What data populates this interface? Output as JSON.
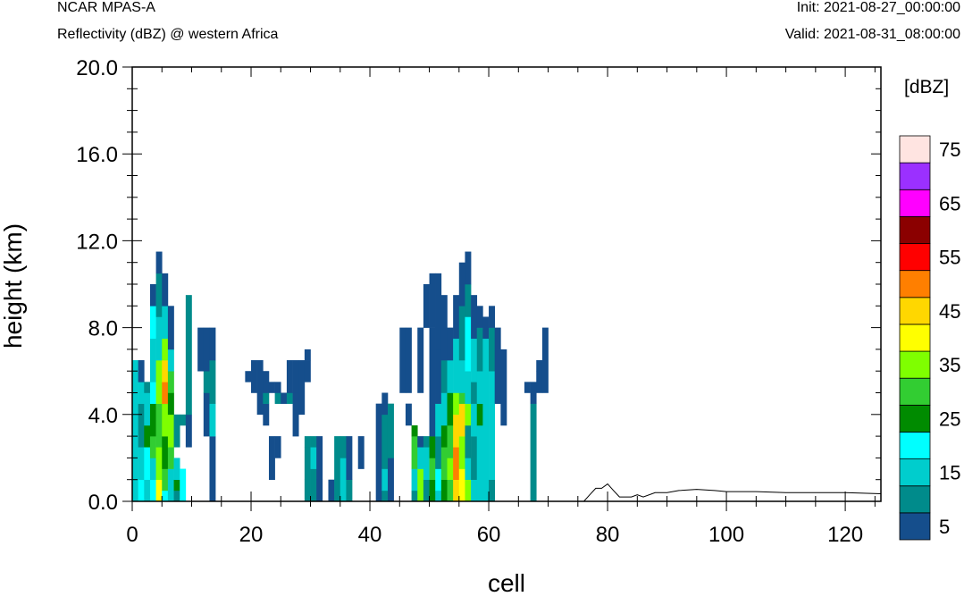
{
  "header": {
    "model": "NCAR MPAS-A",
    "subtitle": "Reflectivity (dBZ) @ western Africa",
    "init": "Init: 2021-08-27_00:00:00",
    "valid": "Valid: 2021-08-31_08:00:00"
  },
  "chart_data": {
    "type": "heatmap",
    "title": "Reflectivity (dBZ) @ western Africa",
    "xlabel": "cell",
    "ylabel": "height (km)",
    "xlim": [
      0,
      126
    ],
    "ylim": [
      0,
      20
    ],
    "x_ticks": [
      "0",
      "20",
      "40",
      "60",
      "80",
      "100",
      "120"
    ],
    "y_ticks": [
      "0.0",
      "4.0",
      "8.0",
      "12.0",
      "16.0",
      "20.0"
    ],
    "colorbar": {
      "unit": "[dBZ]",
      "levels": [
        5,
        10,
        15,
        20,
        25,
        30,
        35,
        40,
        45,
        50,
        55,
        60,
        65,
        70,
        75
      ],
      "labels": [
        "5",
        "15",
        "25",
        "35",
        "45",
        "55",
        "65",
        "75"
      ],
      "colors": [
        "#154e8c",
        "#008b8b",
        "#00cdcd",
        "#00ffff",
        "#008b00",
        "#32cd32",
        "#7fff00",
        "#ffff00",
        "#ffd700",
        "#ff7f00",
        "#ff0000",
        "#8b0000",
        "#ff00ff",
        "#9b30ff",
        "#ffe4e1"
      ]
    },
    "columns": [
      [
        0,
        [
          [
            0,
            6.5,
            "#00cdcd"
          ]
        ]
      ],
      [
        1,
        [
          [
            0,
            1,
            "#00ffff"
          ],
          [
            1,
            2.5,
            "#00cdcd"
          ],
          [
            2.5,
            4.5,
            "#008b8b"
          ],
          [
            4.5,
            5.5,
            "#00cdcd"
          ],
          [
            5.5,
            6.5,
            "#154e8c"
          ]
        ]
      ],
      [
        2,
        [
          [
            0,
            1,
            "#00cdcd"
          ],
          [
            1,
            2.5,
            "#00ffff"
          ],
          [
            2.5,
            3.5,
            "#008b00"
          ],
          [
            3.5,
            5,
            "#00cdcd"
          ],
          [
            5,
            5.5,
            "#008b8b"
          ]
        ]
      ],
      [
        3,
        [
          [
            0,
            1,
            "#00ffff"
          ],
          [
            1,
            2,
            "#00cdcd"
          ],
          [
            2,
            3,
            "#32cd32"
          ],
          [
            3,
            4.5,
            "#008b00"
          ],
          [
            4.5,
            5.5,
            "#00ffff"
          ],
          [
            5.5,
            7.5,
            "#00cdcd"
          ],
          [
            7.5,
            9,
            "#00ffff"
          ],
          [
            9,
            10,
            "#154e8c"
          ]
        ]
      ],
      [
        4,
        [
          [
            0,
            1,
            "#ffff00"
          ],
          [
            1,
            2.5,
            "#7fff00"
          ],
          [
            2.5,
            4.5,
            "#32cd32"
          ],
          [
            4.5,
            6.5,
            "#7fff00"
          ],
          [
            6.5,
            8.5,
            "#00cdcd"
          ],
          [
            8.5,
            10.5,
            "#008b8b"
          ],
          [
            10.5,
            11.5,
            "#154e8c"
          ]
        ]
      ],
      [
        5,
        [
          [
            0,
            0.5,
            "#00ffff"
          ],
          [
            0.5,
            1.5,
            "#32cd32"
          ],
          [
            1.5,
            3,
            "#008b00"
          ],
          [
            3,
            4.5,
            "#7fff00"
          ],
          [
            4.5,
            5.5,
            "#ff7f00"
          ],
          [
            5.5,
            6.5,
            "#ffd700"
          ],
          [
            6.5,
            7.5,
            "#7fff00"
          ],
          [
            7.5,
            9,
            "#00cdcd"
          ],
          [
            9,
            10.5,
            "#154e8c"
          ]
        ]
      ],
      [
        6,
        [
          [
            0,
            1.5,
            "#00cdcd"
          ],
          [
            1.5,
            2.5,
            "#32cd32"
          ],
          [
            2.5,
            4,
            "#7fff00"
          ],
          [
            4,
            5,
            "#008b00"
          ],
          [
            5,
            6,
            "#32cd32"
          ],
          [
            6,
            7,
            "#00cdcd"
          ],
          [
            7,
            9,
            "#154e8c"
          ]
        ]
      ],
      [
        7,
        [
          [
            0,
            0.5,
            "#008b8b"
          ],
          [
            0.5,
            1,
            "#008b00"
          ],
          [
            1,
            2,
            "#00cdcd"
          ],
          [
            2.5,
            4,
            "#008b8b"
          ]
        ]
      ],
      [
        8,
        [
          [
            0,
            1.5,
            "#00ffff"
          ],
          [
            3.5,
            4,
            "#008b8b"
          ]
        ]
      ],
      [
        9,
        [
          [
            2.5,
            4,
            "#154e8c"
          ],
          [
            4,
            9.5,
            "#008b8b"
          ]
        ]
      ],
      [
        11,
        [
          [
            6,
            8,
            "#154e8c"
          ]
        ]
      ],
      [
        12,
        [
          [
            3,
            5,
            "#154e8c"
          ],
          [
            5,
            6,
            "#008b8b"
          ],
          [
            6,
            8,
            "#154e8c"
          ]
        ]
      ],
      [
        13,
        [
          [
            0,
            3,
            "#154e8c"
          ],
          [
            3,
            4.5,
            "#00cdcd"
          ],
          [
            4.5,
            6.5,
            "#008b8b"
          ],
          [
            6.5,
            8,
            "#154e8c"
          ]
        ]
      ],
      [
        19,
        [
          [
            5.5,
            6,
            "#154e8c"
          ]
        ]
      ],
      [
        20,
        [
          [
            5,
            6.5,
            "#154e8c"
          ]
        ]
      ],
      [
        21,
        [
          [
            4,
            6.5,
            "#154e8c"
          ]
        ]
      ],
      [
        22,
        [
          [
            3.5,
            4.5,
            "#154e8c"
          ],
          [
            4.5,
            5,
            "#008b8b"
          ],
          [
            5,
            6,
            "#154e8c"
          ]
        ]
      ],
      [
        23,
        [
          [
            1,
            3,
            "#154e8c"
          ],
          [
            5,
            5.5,
            "#154e8c"
          ]
        ]
      ],
      [
        24,
        [
          [
            2,
            3,
            "#154e8c"
          ],
          [
            4.5,
            5,
            "#008b8b"
          ],
          [
            5,
            5.5,
            "#154e8c"
          ]
        ]
      ],
      [
        25,
        [
          [
            4.5,
            5,
            "#154e8c"
          ]
        ]
      ],
      [
        26,
        [
          [
            4.5,
            5,
            "#008b8b"
          ],
          [
            5,
            6.5,
            "#154e8c"
          ]
        ]
      ],
      [
        27,
        [
          [
            3,
            5,
            "#154e8c"
          ],
          [
            5,
            6.5,
            "#154e8c"
          ]
        ]
      ],
      [
        28,
        [
          [
            4,
            6.5,
            "#154e8c"
          ]
        ]
      ],
      [
        29,
        [
          [
            0,
            1,
            "#008b8b"
          ],
          [
            1,
            2.5,
            "#008b8b"
          ],
          [
            2.5,
            3,
            "#008b8b"
          ],
          [
            5.5,
            6.5,
            "#154e8c"
          ],
          [
            6.5,
            7,
            "#154e8c"
          ]
        ]
      ],
      [
        30,
        [
          [
            0,
            1.5,
            "#008b8b"
          ],
          [
            1.5,
            2.5,
            "#00cdcd"
          ],
          [
            2.5,
            3,
            "#008b8b"
          ]
        ]
      ],
      [
        31,
        [
          [
            0,
            1,
            "#154e8c"
          ],
          [
            1,
            3,
            "#154e8c"
          ]
        ]
      ],
      [
        33,
        [
          [
            0,
            1,
            "#154e8c"
          ]
        ]
      ],
      [
        34,
        [
          [
            0,
            1,
            "#008b8b"
          ],
          [
            1,
            3,
            "#008b8b"
          ]
        ]
      ],
      [
        35,
        [
          [
            0,
            2,
            "#00cdcd"
          ],
          [
            2,
            3,
            "#008b8b"
          ]
        ]
      ],
      [
        36,
        [
          [
            0,
            1,
            "#008b8b"
          ],
          [
            1,
            3,
            "#154e8c"
          ]
        ]
      ],
      [
        38,
        [
          [
            1.5,
            3,
            "#154e8c"
          ]
        ]
      ],
      [
        41,
        [
          [
            0,
            4.5,
            "#154e8c"
          ]
        ]
      ],
      [
        42,
        [
          [
            0,
            0.5,
            "#008b8b"
          ],
          [
            0.5,
            1.5,
            "#00cdcd"
          ],
          [
            1.5,
            4,
            "#008b8b"
          ],
          [
            4,
            5,
            "#154e8c"
          ]
        ]
      ],
      [
        43,
        [
          [
            0,
            2,
            "#154e8c"
          ],
          [
            2,
            4.5,
            "#008b8b"
          ]
        ]
      ],
      [
        45,
        [
          [
            5,
            8,
            "#154e8c"
          ]
        ]
      ],
      [
        46,
        [
          [
            3.5,
            4.5,
            "#154e8c"
          ],
          [
            5,
            8,
            "#154e8c"
          ]
        ]
      ],
      [
        47,
        [
          [
            0,
            0.5,
            "#008b8b"
          ],
          [
            0.5,
            1.5,
            "#00cdcd"
          ],
          [
            1.5,
            3,
            "#32cd32"
          ],
          [
            3,
            3.5,
            "#008b00"
          ]
        ]
      ],
      [
        48,
        [
          [
            0,
            1.5,
            "#7fff00"
          ],
          [
            1.5,
            2.5,
            "#00cdcd"
          ],
          [
            2.5,
            3,
            "#154e8c"
          ],
          [
            5,
            8,
            "#154e8c"
          ]
        ]
      ],
      [
        49,
        [
          [
            0,
            1,
            "#008b8b"
          ],
          [
            1,
            2.5,
            "#00cdcd"
          ],
          [
            2.5,
            3,
            "#008b8b"
          ],
          [
            8,
            10,
            "#154e8c"
          ]
        ]
      ],
      [
        50,
        [
          [
            0,
            1,
            "#008b00"
          ],
          [
            1,
            2,
            "#32cd32"
          ],
          [
            2,
            3,
            "#008b00"
          ],
          [
            3,
            8,
            "#154e8c"
          ],
          [
            8,
            10.5,
            "#154e8c"
          ]
        ]
      ],
      [
        51,
        [
          [
            0,
            0.5,
            "#00cdcd"
          ],
          [
            0.5,
            1.5,
            "#00ffff"
          ],
          [
            1.5,
            3,
            "#008b8b"
          ],
          [
            3,
            4.5,
            "#00cdcd"
          ],
          [
            4.5,
            7,
            "#154e8c"
          ],
          [
            7,
            10.5,
            "#154e8c"
          ]
        ]
      ],
      [
        52,
        [
          [
            0,
            1,
            "#008b00"
          ],
          [
            1,
            2.5,
            "#32cd32"
          ],
          [
            2.5,
            3.5,
            "#008b00"
          ],
          [
            3.5,
            5,
            "#00cdcd"
          ],
          [
            5,
            6.5,
            "#008b8b"
          ],
          [
            6.5,
            9.5,
            "#154e8c"
          ]
        ]
      ],
      [
        53,
        [
          [
            0,
            1,
            "#32cd32"
          ],
          [
            1,
            2,
            "#7fff00"
          ],
          [
            2,
            3.5,
            "#32cd32"
          ],
          [
            3.5,
            5,
            "#008b00"
          ],
          [
            5,
            6.5,
            "#00cdcd"
          ],
          [
            6.5,
            8,
            "#154e8c"
          ]
        ]
      ],
      [
        54,
        [
          [
            0,
            1,
            "#ffd700"
          ],
          [
            1,
            2.5,
            "#ff7f00"
          ],
          [
            2.5,
            4,
            "#ffd700"
          ],
          [
            4,
            5,
            "#7fff00"
          ],
          [
            5,
            7.5,
            "#00cdcd"
          ],
          [
            7.5,
            9.5,
            "#154e8c"
          ]
        ]
      ],
      [
        55,
        [
          [
            0,
            1.5,
            "#ffff00"
          ],
          [
            1.5,
            3,
            "#7fff00"
          ],
          [
            3,
            4.5,
            "#ffd700"
          ],
          [
            4.5,
            5,
            "#32cd32"
          ],
          [
            5,
            6.5,
            "#00cdcd"
          ],
          [
            6.5,
            9,
            "#008b8b"
          ],
          [
            9,
            11,
            "#154e8c"
          ]
        ]
      ],
      [
        56,
        [
          [
            0,
            1,
            "#7fff00"
          ],
          [
            1,
            2,
            "#00cdcd"
          ],
          [
            2,
            3.5,
            "#008b8b"
          ],
          [
            3.5,
            4.5,
            "#7fff00"
          ],
          [
            4.5,
            6,
            "#00cdcd"
          ],
          [
            6,
            8.5,
            "#00ffff"
          ],
          [
            8.5,
            10,
            "#008b8b"
          ],
          [
            10,
            11.5,
            "#154e8c"
          ]
        ]
      ],
      [
        57,
        [
          [
            0,
            1,
            "#00cdcd"
          ],
          [
            1,
            3,
            "#008b8b"
          ],
          [
            3,
            4.5,
            "#00cdcd"
          ],
          [
            4.5,
            5.5,
            "#008b8b"
          ],
          [
            5.5,
            7.5,
            "#00cdcd"
          ],
          [
            7.5,
            9.5,
            "#154e8c"
          ]
        ]
      ],
      [
        58,
        [
          [
            0,
            3.5,
            "#00cdcd"
          ],
          [
            3.5,
            4.5,
            "#008b00"
          ],
          [
            4.5,
            6,
            "#00cdcd"
          ],
          [
            6,
            8,
            "#008b8b"
          ],
          [
            8,
            9,
            "#154e8c"
          ]
        ]
      ],
      [
        59,
        [
          [
            0,
            1,
            "#00cdcd"
          ],
          [
            1,
            3.5,
            "#00cdcd"
          ],
          [
            3.5,
            5,
            "#00cdcd"
          ],
          [
            5,
            7.5,
            "#00cdcd"
          ],
          [
            7.5,
            8.5,
            "#154e8c"
          ]
        ]
      ],
      [
        60,
        [
          [
            0,
            1,
            "#008b8b"
          ],
          [
            1,
            4.5,
            "#00cdcd"
          ],
          [
            4.5,
            6,
            "#00cdcd"
          ],
          [
            6,
            8,
            "#008b8b"
          ],
          [
            8,
            9,
            "#154e8c"
          ]
        ]
      ],
      [
        61,
        [
          [
            4.5,
            8,
            "#154e8c"
          ]
        ]
      ],
      [
        62,
        [
          [
            3.5,
            7,
            "#154e8c"
          ]
        ]
      ],
      [
        66,
        [
          [
            5,
            5.5,
            "#154e8c"
          ]
        ]
      ],
      [
        67,
        [
          [
            0,
            4.5,
            "#008b8b"
          ],
          [
            4.5,
            5.5,
            "#154e8c"
          ]
        ]
      ],
      [
        68,
        [
          [
            5,
            6,
            "#154e8c"
          ],
          [
            6,
            6.5,
            "#154e8c"
          ]
        ]
      ],
      [
        69,
        [
          [
            5,
            8,
            "#154e8c"
          ]
        ]
      ]
    ],
    "terrain": [
      [
        0,
        0
      ],
      [
        76,
        0
      ],
      [
        77,
        0.3
      ],
      [
        78,
        0.6
      ],
      [
        79,
        0.6
      ],
      [
        80,
        0.8
      ],
      [
        81,
        0.5
      ],
      [
        82,
        0.2
      ],
      [
        84,
        0.2
      ],
      [
        85,
        0.3
      ],
      [
        86,
        0.2
      ],
      [
        88,
        0.4
      ],
      [
        90,
        0.4
      ],
      [
        92,
        0.5
      ],
      [
        95,
        0.55
      ],
      [
        98,
        0.5
      ],
      [
        100,
        0.45
      ],
      [
        105,
        0.45
      ],
      [
        110,
        0.4
      ],
      [
        115,
        0.4
      ],
      [
        120,
        0.4
      ],
      [
        126,
        0.35
      ]
    ]
  }
}
